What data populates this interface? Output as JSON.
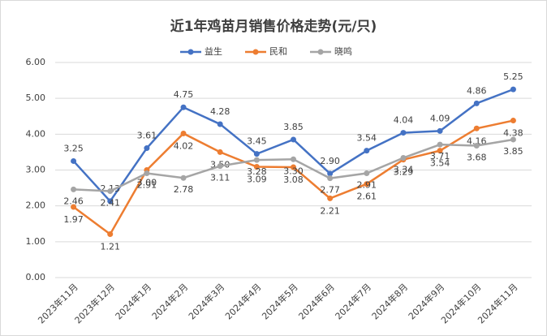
{
  "chart_data": {
    "type": "line",
    "title": "近1年鸡苗月销售价格走势(元/只)",
    "categories": [
      "2023年11月",
      "2023年12月",
      "2024年1月",
      "2024年2月",
      "2024年3月",
      "2024年4月",
      "2024年5月",
      "2024年6月",
      "2024年7月",
      "2024年8月",
      "2024年9月",
      "2024年10月",
      "2024年11月"
    ],
    "series": [
      {
        "name": "益生",
        "color": "#4472c4",
        "values": [
          3.25,
          2.13,
          3.61,
          4.75,
          4.28,
          3.45,
          3.85,
          2.9,
          3.54,
          4.04,
          4.09,
          4.86,
          5.25
        ],
        "value_labels": [
          "3.25",
          "2.13",
          "3.61",
          "4.75",
          "4.28",
          "3.45",
          "3.85",
          "2.90",
          "3.54",
          "4.04",
          "4.09",
          "4.86",
          "5.25"
        ]
      },
      {
        "name": "民和",
        "color": "#ed7d31",
        "values": [
          1.97,
          1.21,
          3.0,
          4.02,
          3.5,
          3.09,
          3.08,
          2.21,
          2.61,
          3.29,
          3.54,
          4.16,
          4.38
        ],
        "value_labels": [
          "1.97",
          "1.21",
          "3.00",
          "4.02",
          "3.50",
          "3.09",
          "3.08",
          "2.21",
          "2.61",
          "3.29",
          "3.54",
          "4.16",
          "4.38"
        ]
      },
      {
        "name": "晓鸣",
        "color": "#a5a5a5",
        "values": [
          2.46,
          2.41,
          2.91,
          2.78,
          3.11,
          3.28,
          3.3,
          2.77,
          2.91,
          3.34,
          3.71,
          3.68,
          3.85
        ],
        "value_labels": [
          "2.46",
          "2.41",
          "2.91",
          "2.78",
          "3.11",
          "3.28",
          "3.30",
          "2.77",
          "2.91",
          "3.34",
          "3.71",
          "3.68",
          "3.85"
        ]
      }
    ],
    "ylim": [
      0,
      6
    ],
    "yticks": [
      {
        "value": 0,
        "label": "0.00"
      },
      {
        "value": 1,
        "label": "1.00"
      },
      {
        "value": 2,
        "label": "2.00"
      },
      {
        "value": 3,
        "label": "3.00"
      },
      {
        "value": 4,
        "label": "4.00"
      },
      {
        "value": 5,
        "label": "5.00"
      },
      {
        "value": 6,
        "label": "6.00"
      }
    ],
    "grid": true,
    "legend": "top"
  }
}
